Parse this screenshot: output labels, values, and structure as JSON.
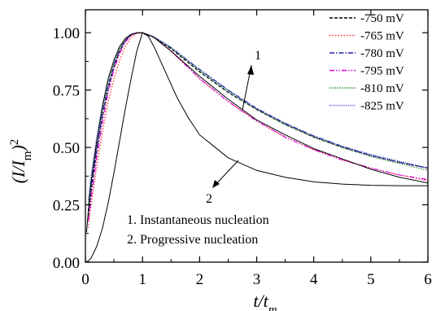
{
  "chart_data": {
    "type": "line",
    "title": "",
    "xlabel": "t/t_m",
    "ylabel": "(I/I_m)^2",
    "xlim": [
      0,
      6
    ],
    "ylim": [
      0,
      1.1
    ],
    "x_ticks": [
      0,
      1,
      2,
      3,
      4,
      5,
      6
    ],
    "y_ticks": [
      0.0,
      0.25,
      0.5,
      0.75,
      1.0
    ],
    "x_tick_labels": [
      "0",
      "1",
      "2",
      "3",
      "4",
      "5",
      "6"
    ],
    "y_tick_labels": [
      "0.00",
      "0.25",
      "0.50",
      "0.75",
      "1.00"
    ],
    "grid": false,
    "legend_position": "top-right",
    "x": [
      0.05,
      0.1,
      0.2,
      0.3,
      0.4,
      0.5,
      0.6,
      0.7,
      0.8,
      0.9,
      1.0,
      1.2,
      1.5,
      2.0,
      2.5,
      3.0,
      3.5,
      4.0,
      4.5,
      5.0,
      5.5,
      6.0
    ],
    "series": [
      {
        "name": "-750 mV",
        "color": "#000000",
        "dash": "4,2",
        "values": [
          0.2,
          0.31,
          0.49,
          0.64,
          0.76,
          0.85,
          0.92,
          0.965,
          0.99,
          1.0,
          1.0,
          0.98,
          0.93,
          0.83,
          0.74,
          0.665,
          0.6,
          0.545,
          0.5,
          0.465,
          0.435,
          0.41
        ]
      },
      {
        "name": "-765 mV",
        "color": "#ff2a2a",
        "dash": "1.5,2",
        "values": [
          0.15,
          0.25,
          0.42,
          0.57,
          0.7,
          0.8,
          0.88,
          0.94,
          0.98,
          0.997,
          1.0,
          0.98,
          0.92,
          0.8,
          0.7,
          0.615,
          0.545,
          0.49,
          0.445,
          0.41,
          0.38,
          0.355
        ]
      },
      {
        "name": "-780 mV",
        "color": "#1f1fb0",
        "dash": "6,2,1.5,2",
        "values": [
          0.22,
          0.33,
          0.5,
          0.65,
          0.77,
          0.86,
          0.925,
          0.968,
          0.99,
          1.0,
          1.0,
          0.98,
          0.935,
          0.84,
          0.75,
          0.67,
          0.605,
          0.55,
          0.505,
          0.465,
          0.435,
          0.41
        ]
      },
      {
        "name": "-795 mV",
        "color": "#e000e0",
        "dash": "6,2,1.5,2,1.5,2",
        "values": [
          0.18,
          0.28,
          0.46,
          0.61,
          0.74,
          0.84,
          0.91,
          0.96,
          0.988,
          0.999,
          1.0,
          0.98,
          0.92,
          0.8,
          0.7,
          0.615,
          0.545,
          0.49,
          0.445,
          0.41,
          0.38,
          0.36
        ]
      },
      {
        "name": "-810 mV",
        "color": "#2e8b2e",
        "dash": "1.5,1.5",
        "values": [
          0.25,
          0.36,
          0.53,
          0.67,
          0.78,
          0.87,
          0.93,
          0.97,
          0.992,
          1.0,
          1.0,
          0.982,
          0.935,
          0.835,
          0.745,
          0.665,
          0.6,
          0.545,
          0.5,
          0.46,
          0.43,
          0.4
        ]
      },
      {
        "name": "-825 mV",
        "color": "#3a3ad0",
        "dash": "1,1.5",
        "values": [
          0.27,
          0.38,
          0.55,
          0.69,
          0.8,
          0.88,
          0.94,
          0.975,
          0.994,
          1.0,
          1.0,
          0.982,
          0.937,
          0.84,
          0.75,
          0.67,
          0.605,
          0.55,
          0.505,
          0.47,
          0.44,
          0.41
        ]
      }
    ],
    "theory_curves": [
      {
        "id": "1",
        "label": "Instantaneous nucleation",
        "color": "#000000",
        "x": [
          0.02,
          0.05,
          0.1,
          0.2,
          0.3,
          0.4,
          0.5,
          0.6,
          0.7,
          0.8,
          0.9,
          1.0,
          1.2,
          1.5,
          2.0,
          2.5,
          3.0,
          3.5,
          4.0,
          4.5,
          5.0,
          5.5,
          6.0
        ],
        "values": [
          0.13,
          0.22,
          0.35,
          0.53,
          0.68,
          0.8,
          0.88,
          0.94,
          0.975,
          0.993,
          0.999,
          1.0,
          0.98,
          0.92,
          0.81,
          0.71,
          0.62,
          0.555,
          0.495,
          0.45,
          0.405,
          0.37,
          0.345
        ]
      },
      {
        "id": "2",
        "label": "Progressive nucleation",
        "color": "#000000",
        "x": [
          0.0,
          0.05,
          0.1,
          0.2,
          0.3,
          0.4,
          0.5,
          0.6,
          0.7,
          0.8,
          0.9,
          1.0,
          1.1,
          1.2,
          1.4,
          1.6,
          1.8,
          2.0,
          2.5,
          3.0,
          3.5,
          4.0,
          4.5,
          5.0,
          5.5,
          6.0
        ],
        "values": [
          0.0,
          0.005,
          0.018,
          0.07,
          0.15,
          0.26,
          0.39,
          0.53,
          0.67,
          0.8,
          0.92,
          1.0,
          0.985,
          0.94,
          0.83,
          0.72,
          0.63,
          0.555,
          0.455,
          0.4,
          0.37,
          0.35,
          0.34,
          0.335,
          0.333,
          0.333
        ]
      }
    ],
    "annotations": {
      "curve1_label": "1",
      "curve2_label": "2",
      "note_1": "1. Instantaneous nucleation",
      "note_2": "2. Progressive nucleation"
    }
  }
}
